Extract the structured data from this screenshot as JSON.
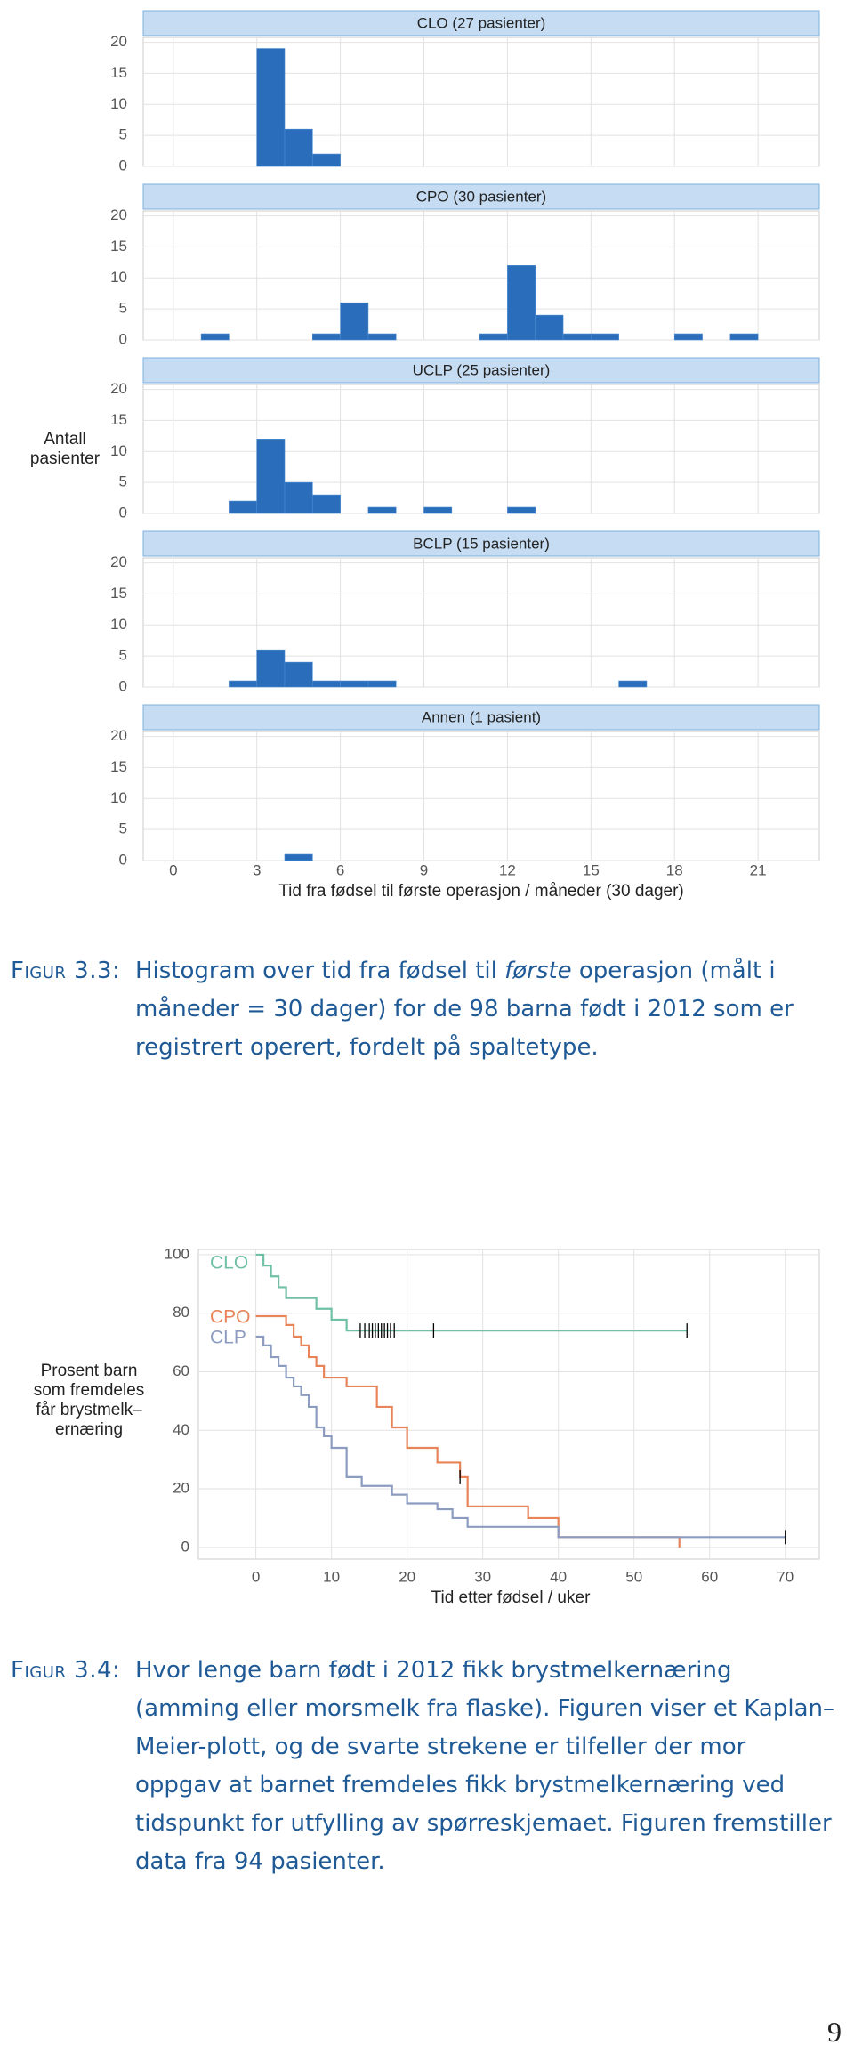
{
  "chart_data": [
    {
      "type": "histogram",
      "xlabel": "Tid fra fødsel til første operasjon / måneder (30 dager)",
      "ylabel": "Antall pasienter",
      "color": "#2a6ebb",
      "bins": [
        0,
        1,
        2,
        3,
        4,
        5,
        6,
        7,
        8,
        9,
        10,
        11,
        12,
        13,
        14,
        15,
        16,
        17,
        18,
        19,
        20,
        21
      ],
      "xlim": [
        -1.08,
        23.2
      ],
      "xticks": [
        0,
        3,
        6,
        9,
        12,
        15,
        18,
        21
      ],
      "ylim": [
        0,
        20.8
      ],
      "yticks": [
        0,
        5,
        10,
        15,
        20
      ],
      "grid": true,
      "panels": [
        {
          "title": "CLO (27 pasienter)",
          "values": [
            0,
            0,
            0,
            19,
            6,
            2,
            0,
            0,
            0,
            0,
            0,
            0,
            0,
            0,
            0,
            0,
            0,
            0,
            0,
            0,
            0
          ]
        },
        {
          "title": "CPO (30 pasienter)",
          "values": [
            0,
            1,
            0,
            0,
            0,
            1,
            6,
            1,
            0,
            0,
            0,
            1,
            12,
            4,
            1,
            1,
            0,
            0,
            1,
            0,
            1
          ]
        },
        {
          "title": "UCLP (25 pasienter)",
          "values": [
            0,
            0,
            2,
            12,
            5,
            3,
            0,
            1,
            0,
            1,
            0,
            0,
            1,
            0,
            0,
            0,
            0,
            0,
            0,
            0,
            0
          ]
        },
        {
          "title": "BCLP (15 pasienter)",
          "values": [
            0,
            0,
            1,
            6,
            4,
            1,
            1,
            1,
            0,
            0,
            0,
            0,
            0,
            0,
            0,
            0,
            1,
            0,
            0,
            0,
            0
          ]
        },
        {
          "title": "Annen (1 pasient)",
          "values": [
            0,
            0,
            0,
            0,
            1,
            0,
            0,
            0,
            0,
            0,
            0,
            0,
            0,
            0,
            0,
            0,
            0,
            0,
            0,
            0,
            0
          ]
        }
      ]
    },
    {
      "type": "line",
      "step": true,
      "xlabel": "Tid etter fødsel / uker",
      "ylabel": [
        "Prosent barn",
        "som fremdeles",
        "får brystmelk–",
        "ernæring"
      ],
      "xlim": [
        -7.6,
        74.5
      ],
      "xticks": [
        0,
        10,
        20,
        30,
        40,
        50,
        60,
        70
      ],
      "ylim": [
        -4,
        101.8
      ],
      "yticks": [
        0,
        20,
        40,
        60,
        80,
        100
      ],
      "grid": true,
      "censor_color": "#000000",
      "series": [
        {
          "name": "CLO",
          "color": "#6fc0a5",
          "x": [
            0,
            1,
            2,
            3,
            4,
            8,
            10,
            12,
            57
          ],
          "values": [
            100,
            96.3,
            92.6,
            88.9,
            85.2,
            81.5,
            77.8,
            74.1,
            74.1
          ],
          "censor_x": [
            13.8,
            14.4,
            15,
            15.4,
            15.8,
            16.2,
            16.6,
            17,
            17.4,
            17.8,
            18.3,
            23.5,
            57
          ],
          "censor_y": [
            74.1,
            74.1,
            74.1,
            74.1,
            74.1,
            74.1,
            74.1,
            74.1,
            74.1,
            74.1,
            74.1,
            74.1,
            74.1
          ]
        },
        {
          "name": "CPO",
          "color": "#e8845a",
          "x": [
            0,
            4,
            5,
            6,
            7,
            8,
            9,
            12,
            16,
            18,
            20,
            24,
            27,
            28,
            36,
            40,
            56
          ],
          "values": [
            79,
            76,
            72,
            69,
            65,
            62,
            58,
            55,
            48,
            41,
            34,
            29,
            24,
            14,
            10,
            3.5,
            0
          ],
          "censor_x": [
            27
          ],
          "censor_y": [
            24
          ]
        },
        {
          "name": "CLP",
          "color": "#8c9cc0",
          "x": [
            0,
            1,
            2,
            3,
            4,
            5,
            6,
            7,
            8,
            9,
            10,
            12,
            14,
            18,
            20,
            24,
            26,
            28,
            40,
            70
          ],
          "values": [
            72,
            69,
            65,
            62,
            58,
            55,
            52,
            48,
            41,
            38,
            34,
            24,
            21,
            18,
            15,
            13,
            10,
            7,
            3.5,
            3.5
          ],
          "censor_x": [
            70
          ],
          "censor_y": [
            3.5
          ]
        }
      ]
    }
  ],
  "captions": [
    {
      "label": "Figur 3.3:",
      "parts": [
        {
          "text": "Histogram over tid fra fødsel til "
        },
        {
          "text": "første",
          "italic": true
        },
        {
          "text": " operasjon (målt i måneder = 30 dager) for de 98 barna født i 2012 som er registrert operert, fordelt på spaltetype."
        }
      ]
    },
    {
      "label": "Figur 3.4:",
      "parts": [
        {
          "text": "Hvor lenge barn født i 2012 fikk brystmelkernæring (amming eller morsmelk fra flaske). Figuren viser et Kaplan–Meier-plott, og de svarte strekene er tilfeller der mor oppgav at barnet fremdeles fikk brystmelkernæring ved tidspunkt for utfylling av spørreskjemaet. Figuren fremstiller data fra 94 pasienter."
        }
      ]
    }
  ],
  "page_number": "9"
}
